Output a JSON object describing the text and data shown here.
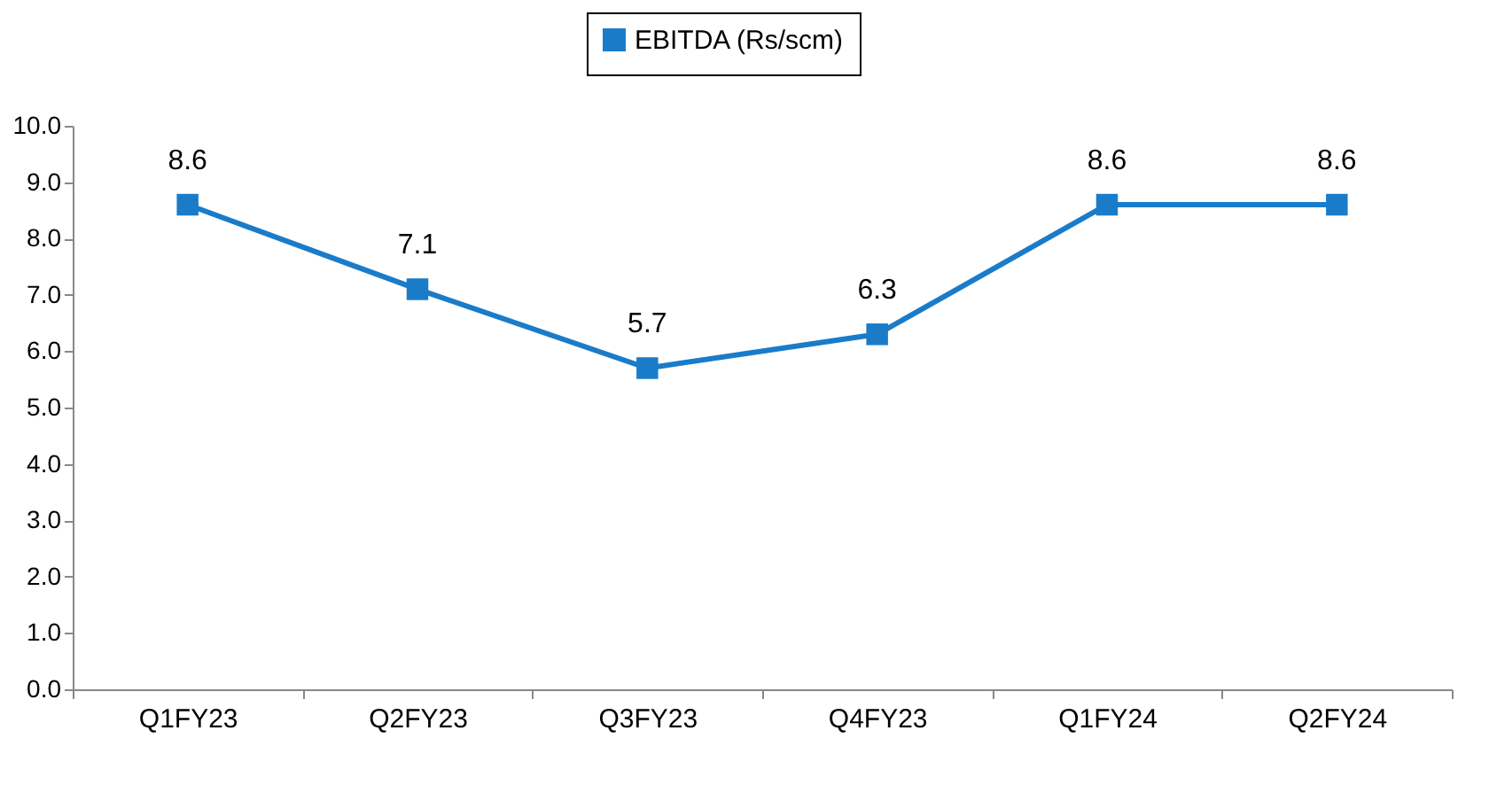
{
  "chart_data": {
    "type": "line",
    "categories": [
      "Q1FY23",
      "Q2FY23",
      "Q3FY23",
      "Q4FY23",
      "Q1FY24",
      "Q2FY24"
    ],
    "series": [
      {
        "name": "EBITDA (Rs/scm)",
        "color": "#1a7cc9",
        "values": [
          8.6,
          7.1,
          5.7,
          6.3,
          8.6,
          8.6
        ]
      }
    ],
    "ylim": [
      0,
      10
    ],
    "yticks": [
      {
        "value": 0,
        "label": "0.0"
      },
      {
        "value": 1,
        "label": "1.0"
      },
      {
        "value": 2,
        "label": "2.0"
      },
      {
        "value": 3,
        "label": "3.0"
      },
      {
        "value": 4,
        "label": "4.0"
      },
      {
        "value": 5,
        "label": "5.0"
      },
      {
        "value": 6,
        "label": "6.0"
      },
      {
        "value": 7,
        "label": "7.0"
      },
      {
        "value": 8,
        "label": "8.0"
      },
      {
        "value": 9,
        "label": "9.0"
      },
      {
        "value": 10,
        "label": "10.0"
      }
    ],
    "data_labels": true,
    "grid": false,
    "legend": "top",
    "marker": "square",
    "line_style": "solid"
  }
}
